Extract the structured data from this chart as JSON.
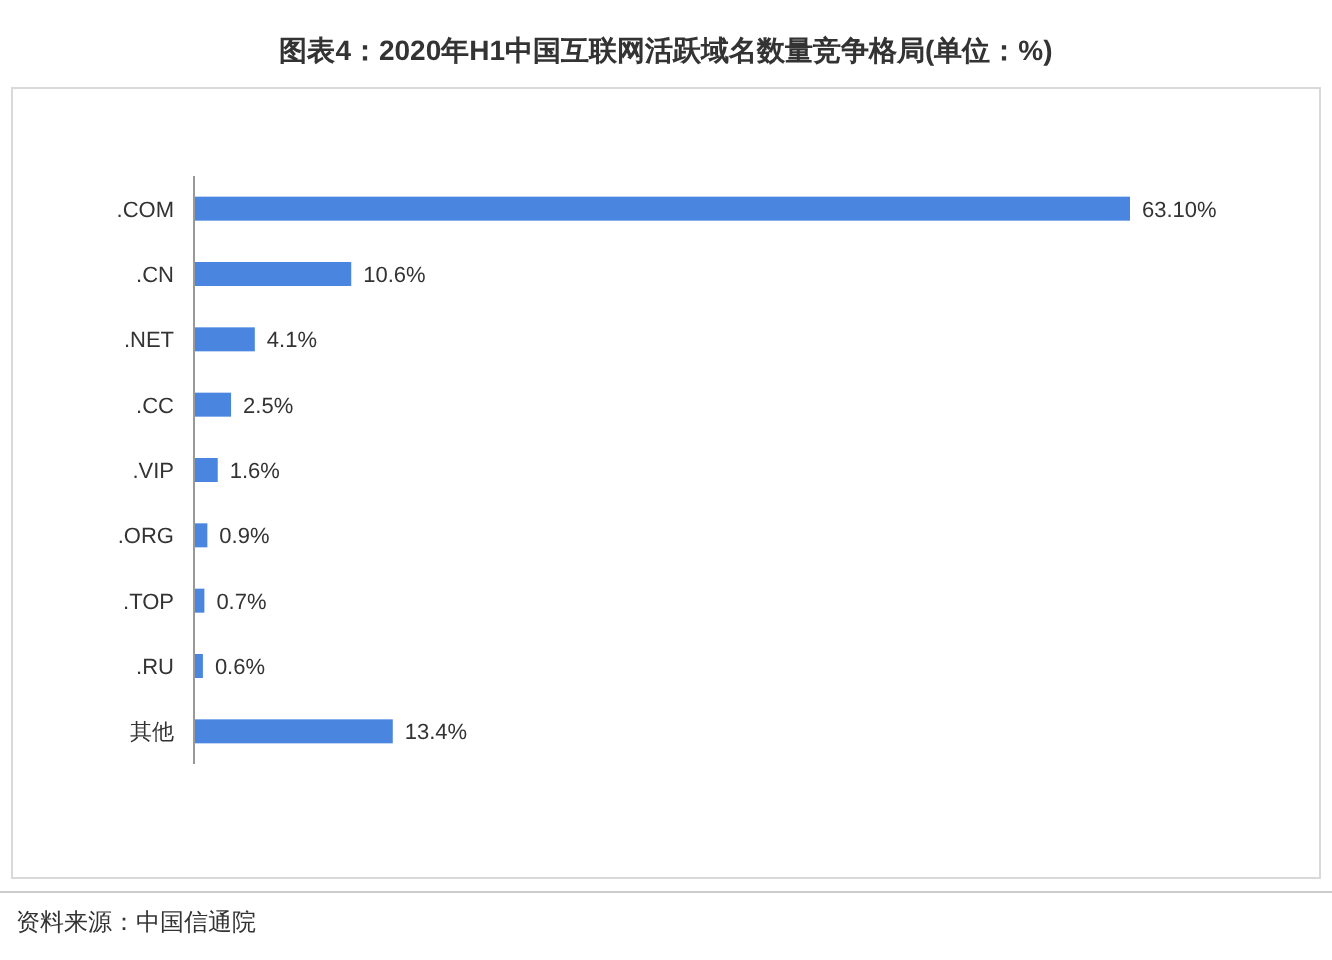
{
  "chart_data": {
    "type": "bar",
    "orientation": "horizontal",
    "title": "图表4：2020年H1中国互联网活跃域名数量竞争格局(单位：%)",
    "categories": [
      ".COM",
      ".CN",
      ".NET",
      ".CC",
      ".VIP",
      ".ORG",
      ".TOP",
      ".RU",
      "其他"
    ],
    "values": [
      63.1,
      10.6,
      4.1,
      2.5,
      1.6,
      0.9,
      0.7,
      0.6,
      13.4
    ],
    "value_labels": [
      "63.10%",
      "10.6%",
      "4.1%",
      "2.5%",
      "1.6%",
      "0.9%",
      "0.7%",
      "0.6%",
      "13.4%"
    ],
    "color": "#4a86e0",
    "annotations": [
      "资料来源：中国信通院"
    ]
  }
}
